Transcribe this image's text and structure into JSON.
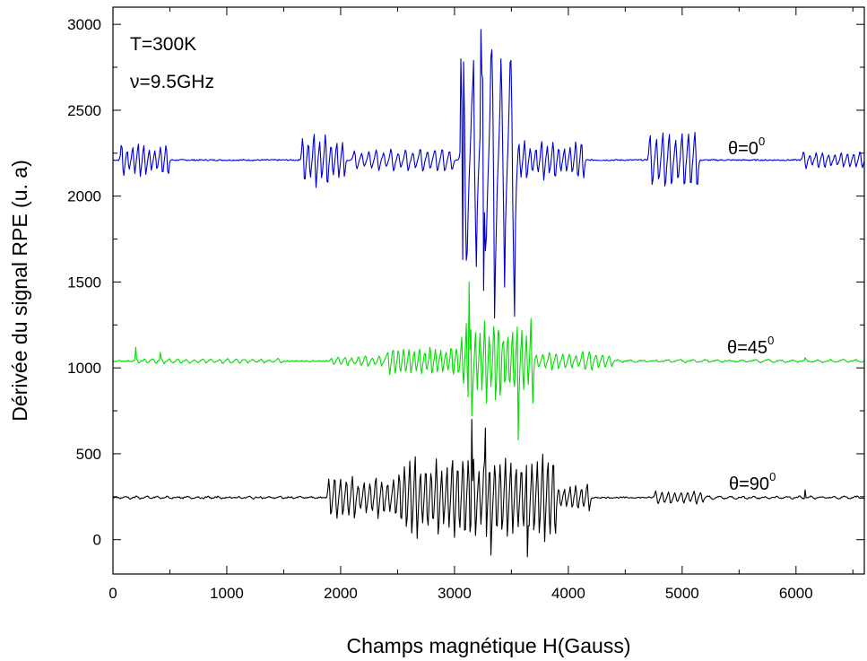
{
  "chart_data": {
    "type": "line",
    "xlabel": "Champs magnétique H(Gauss)",
    "ylabel": "Dérivée du signal RPE (u. a)",
    "xlim": [
      0,
      6600
    ],
    "ylim": [
      -200,
      3100
    ],
    "x_ticks": [
      0,
      1000,
      2000,
      3000,
      4000,
      5000,
      6000
    ],
    "y_ticks": [
      0,
      500,
      1000,
      1500,
      2000,
      2500,
      3000
    ],
    "x_tick_labels": [
      "0",
      "1000",
      "2000",
      "3000",
      "4000",
      "5000",
      "6000"
    ],
    "y_tick_labels": [
      "0",
      "500",
      "1000",
      "1500",
      "2000",
      "2500",
      "3000"
    ],
    "grid": false,
    "annotations": {
      "temperature": "T=300K",
      "frequency": "ν=9.5GHz"
    },
    "series": [
      {
        "name": "θ=0",
        "label_main": "θ=0",
        "label_sup": "0",
        "color": "#0000cc",
        "baseline": 2210,
        "groups": [
          {
            "x_start": 60,
            "x_end": 500,
            "n": 9,
            "amp": 100
          },
          {
            "x_start": 1650,
            "x_end": 2050,
            "n": 8,
            "amp": 160
          },
          {
            "x_start": 2100,
            "x_end": 3000,
            "n": 14,
            "amp": 70
          },
          {
            "x_start": 3050,
            "x_end": 3550,
            "n": 6,
            "amp": 650
          },
          {
            "x_start": 3550,
            "x_end": 4150,
            "n": 12,
            "amp": 120
          },
          {
            "x_start": 4700,
            "x_end": 5150,
            "n": 8,
            "amp": 170
          },
          {
            "x_start": 6050,
            "x_end": 6600,
            "n": 10,
            "amp": 50
          }
        ],
        "points": [
          [
            3060,
            2800
          ],
          [
            3075,
            1630
          ],
          [
            3165,
            2790
          ],
          [
            3190,
            1590
          ],
          [
            3230,
            2970
          ],
          [
            3255,
            1450
          ],
          [
            3320,
            2810
          ],
          [
            3350,
            1290
          ],
          [
            3410,
            2800
          ],
          [
            3440,
            1470
          ],
          [
            3500,
            2790
          ],
          [
            3525,
            1300
          ]
        ]
      },
      {
        "name": "θ=45",
        "label_main": "θ=45",
        "label_sup": "0",
        "color": "#00dd00",
        "baseline": 1040,
        "groups": [
          {
            "x_start": 180,
            "x_end": 1500,
            "n": 18,
            "amp": 15
          },
          {
            "x_start": 1900,
            "x_end": 2500,
            "n": 10,
            "amp": 30
          },
          {
            "x_start": 2400,
            "x_end": 3050,
            "n": 14,
            "amp": 90
          },
          {
            "x_start": 3050,
            "x_end": 3700,
            "n": 16,
            "amp": 250
          },
          {
            "x_start": 3700,
            "x_end": 4400,
            "n": 12,
            "amp": 60
          },
          {
            "x_start": 4400,
            "x_end": 6600,
            "n": 20,
            "amp": 8
          }
        ],
        "points": [
          [
            200,
            1120
          ],
          [
            420,
            1090
          ],
          [
            3130,
            1500
          ],
          [
            3150,
            720
          ],
          [
            3420,
            1080
          ],
          [
            3560,
            580
          ],
          [
            6080,
            1060
          ]
        ]
      },
      {
        "name": "θ=90",
        "label_main": "θ=90",
        "label_sup": "0",
        "color": "#000000",
        "baseline": 245,
        "groups": [
          {
            "x_start": 0,
            "x_end": 1800,
            "n": 20,
            "amp": 6
          },
          {
            "x_start": 1880,
            "x_end": 2500,
            "n": 12,
            "amp": 130
          },
          {
            "x_start": 2500,
            "x_end": 3900,
            "n": 30,
            "amp": 260
          },
          {
            "x_start": 3900,
            "x_end": 4200,
            "n": 6,
            "amp": 80
          },
          {
            "x_start": 4750,
            "x_end": 5200,
            "n": 8,
            "amp": 40
          },
          {
            "x_start": 5200,
            "x_end": 6600,
            "n": 14,
            "amp": 8
          }
        ],
        "points": [
          [
            3150,
            700
          ],
          [
            3270,
            650
          ],
          [
            3320,
            -90
          ],
          [
            3640,
            -100
          ],
          [
            6080,
            290
          ]
        ]
      }
    ]
  }
}
